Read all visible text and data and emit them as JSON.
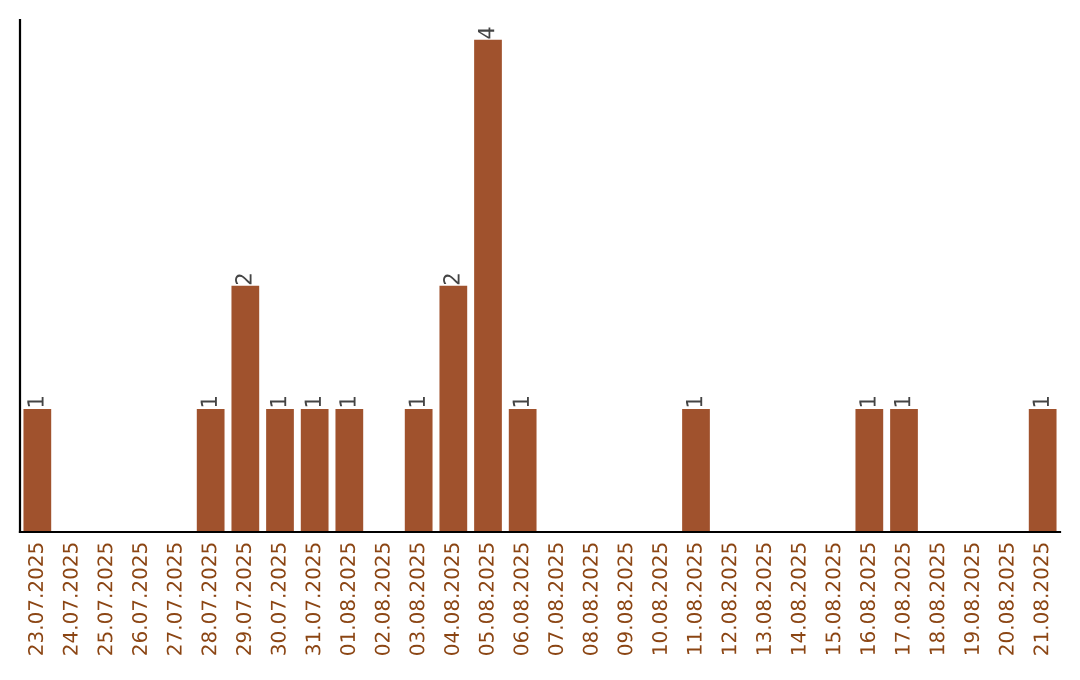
{
  "chart_data": {
    "type": "bar",
    "categories": [
      "23.07.2025",
      "24.07.2025",
      "25.07.2025",
      "26.07.2025",
      "27.07.2025",
      "28.07.2025",
      "29.07.2025",
      "30.07.2025",
      "31.07.2025",
      "01.08.2025",
      "02.08.2025",
      "03.08.2025",
      "04.08.2025",
      "05.08.2025",
      "06.08.2025",
      "07.08.2025",
      "08.08.2025",
      "09.08.2025",
      "10.08.2025",
      "11.08.2025",
      "12.08.2025",
      "13.08.2025",
      "14.08.2025",
      "15.08.2025",
      "16.08.2025",
      "17.08.2025",
      "18.08.2025",
      "19.08.2025",
      "20.08.2025",
      "21.08.2025"
    ],
    "values": [
      1,
      0,
      0,
      0,
      0,
      1,
      2,
      1,
      1,
      1,
      0,
      1,
      2,
      4,
      1,
      0,
      0,
      0,
      0,
      1,
      0,
      0,
      0,
      0,
      1,
      1,
      0,
      0,
      0,
      1
    ],
    "value_labels": [
      "1",
      null,
      null,
      null,
      null,
      "1",
      "2",
      "1",
      "1",
      "1",
      null,
      "1",
      "2",
      "4",
      "1",
      null,
      null,
      null,
      null,
      "1",
      null,
      null,
      null,
      null,
      "1",
      "1",
      null,
      null,
      null,
      "1"
    ],
    "color": "#a0522d",
    "tick_labels": "x",
    "grid": false,
    "legend": false
  }
}
